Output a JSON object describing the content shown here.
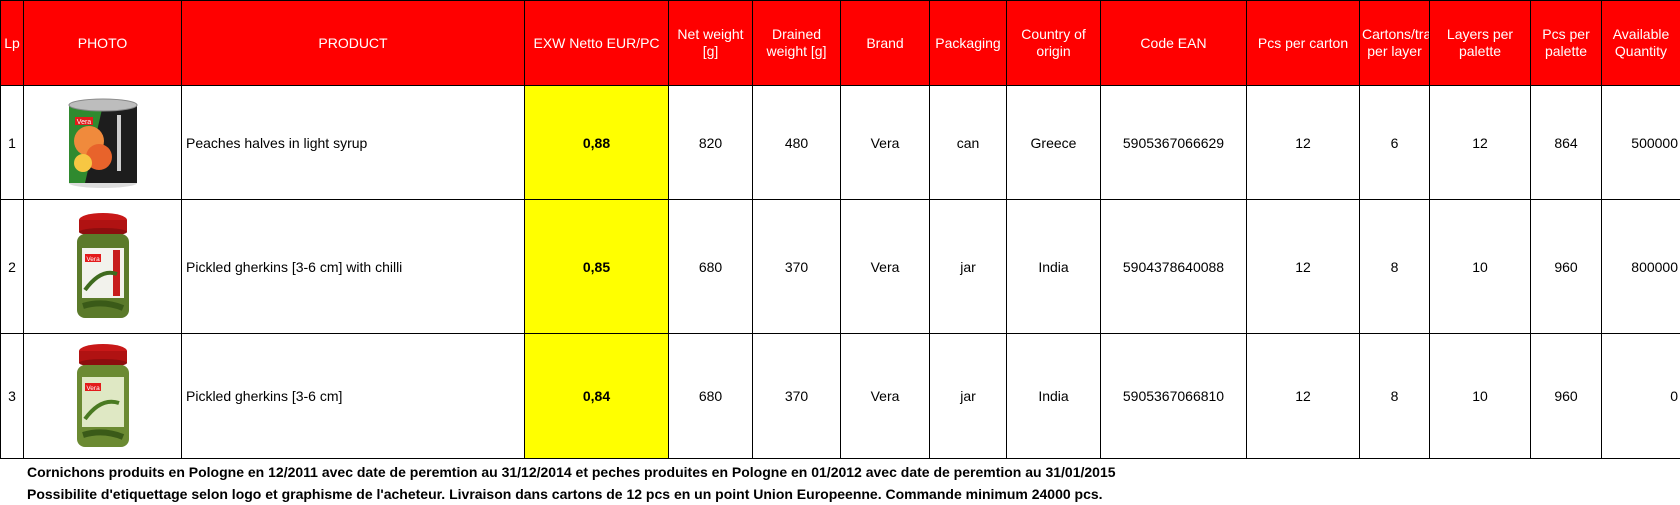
{
  "headers": {
    "lp": "Lp",
    "photo": "PHOTO",
    "product": "PRODUCT",
    "price": "EXW Netto EUR/PC",
    "net_weight": "Net weight [g]",
    "drained_weight": "Drained weight [g]",
    "brand": "Brand",
    "packaging": "Packaging",
    "country": "Country of origin",
    "ean": "Code EAN",
    "pcs_carton": "Pcs per carton",
    "cartons_layer": "Cartons/traies per layer",
    "layers_palette": "Layers per palette",
    "pcs_palette": "Pcs per palette",
    "available": "Available Quantity"
  },
  "rows": [
    {
      "lp": "1",
      "photo": "can-icon",
      "product": "Peaches halves in light syrup",
      "price": "0,88",
      "net_weight": "820",
      "drained_weight": "480",
      "brand": "Vera",
      "packaging": "can",
      "country": "Greece",
      "ean": "5905367066629",
      "pcs_carton": "12",
      "cartons_layer": "6",
      "layers_palette": "12",
      "pcs_palette": "864",
      "available": "500000"
    },
    {
      "lp": "2",
      "photo": "jar-icon",
      "product": "Pickled gherkins [3-6 cm] with chilli",
      "price": "0,85",
      "net_weight": "680",
      "drained_weight": "370",
      "brand": "Vera",
      "packaging": "jar",
      "country": "India",
      "ean": "5904378640088",
      "pcs_carton": "12",
      "cartons_layer": "8",
      "layers_palette": "10",
      "pcs_palette": "960",
      "available": "800000"
    },
    {
      "lp": "3",
      "photo": "jar-icon",
      "product": "Pickled gherkins [3-6 cm]",
      "price": "0,84",
      "net_weight": "680",
      "drained_weight": "370",
      "brand": "Vera",
      "packaging": "jar",
      "country": "India",
      "ean": "5905367066810",
      "pcs_carton": "12",
      "cartons_layer": "8",
      "layers_palette": "10",
      "pcs_palette": "960",
      "available": "0"
    }
  ],
  "image_labels": {
    "brand_logo": "Vera"
  },
  "notes": [
    "Cornichons produits en Pologne en 12/2011 avec date de peremtion au 31/12/2014 et peches produites en Pologne en 01/2012 avec date de peremtion au 31/01/2015",
    "Possibilite d'etiquettage selon logo et graphisme de l'acheteur. Livraison dans cartons de 12 pcs en un point Union Europeenne. Commande minimum 24000 pcs."
  ],
  "colors": {
    "header_bg": "#ff0000",
    "header_text": "#ffffff",
    "price_bg": "#ffff00"
  }
}
